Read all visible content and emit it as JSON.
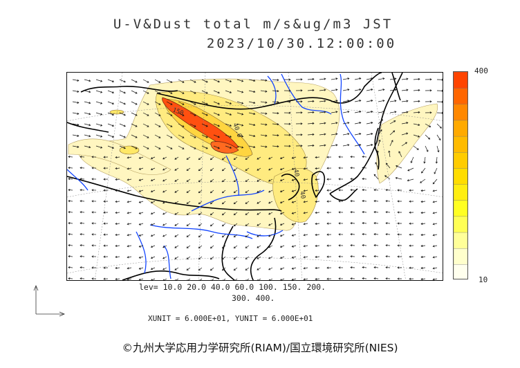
{
  "header": {
    "title": "U-V&Dust total m/s&ug/m3 JST",
    "datetime": "2023/10/30.12:00:00"
  },
  "colorbar": {
    "max_label": "400",
    "min_label": "10",
    "levels": [
      10,
      20,
      40,
      60,
      100,
      150,
      200,
      300,
      400
    ],
    "colors": [
      "#ffffee",
      "#ffffcc",
      "#ffff99",
      "#ffff55",
      "#ffff22",
      "#ffee11",
      "#ffdd00",
      "#ffcc00",
      "#ffbb00",
      "#ffaa00",
      "#ff8800",
      "#ff6600",
      "#ff4400"
    ]
  },
  "legend": {
    "levels_line1": "lev= 10.0 20.0 40.0 60.0 100. 150. 200.",
    "levels_line2": "300. 400.",
    "unit_line": "XUNIT = 6.000E+01, YUNIT = 6.000E+01"
  },
  "map": {
    "contour_labels": [
      "150",
      "40.0",
      "40",
      "40"
    ],
    "colors": {
      "coastline": "#000000",
      "rivers": "#1144ff",
      "dust_low": "#fff3b0",
      "dust_mid": "#ffe866",
      "dust_high": "#ffb000",
      "dust_peak": "#ff4000"
    }
  },
  "credit": "©九州大学応用力学研究所(RIAM)/国立環境研究所(NIES)"
}
